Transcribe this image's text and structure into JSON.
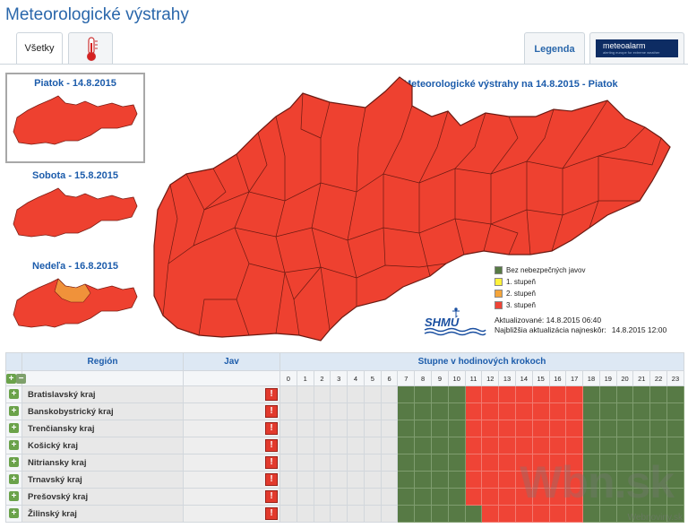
{
  "page": {
    "title": "Meteorologické výstrahy"
  },
  "tabs": {
    "all": "Všetky",
    "legend": "Legenda",
    "meteoalarm_logo": "meteoalarm",
    "meteoalarm_tagline": "alerting europe for extreme weather"
  },
  "days": [
    {
      "label": "Piatok - 14.8.2015",
      "selected": true
    },
    {
      "label": "Sobota - 15.8.2015",
      "selected": false
    },
    {
      "label": "Nedeľa - 16.8.2015",
      "selected": false
    }
  ],
  "map": {
    "title": "Meteorologické výstrahy na 14.8.2015 - Piatok",
    "fill_color": "#ee4130"
  },
  "legend": [
    {
      "label": "Bez nebezpečných javov",
      "color": "#577a45"
    },
    {
      "label": "1. stupeň",
      "color": "#fff23a"
    },
    {
      "label": "2. stupeň",
      "color": "#f5a53a"
    },
    {
      "label": "3. stupeň",
      "color": "#ef4436"
    }
  ],
  "shmu_logo": "SHMÚ",
  "update": {
    "updated_label": "Aktualizované:",
    "updated_value": "14.8.2015 06:40",
    "next_label": "Najbližšia aktualizácia najneskôr:",
    "next_value": "14.8.2015 12:00"
  },
  "table": {
    "col_region": "Región",
    "col_jav": "Jav",
    "col_hours": "Stupne v hodinových krokoch",
    "hours": [
      "0",
      "1",
      "2",
      "3",
      "4",
      "5",
      "6",
      "7",
      "8",
      "9",
      "10",
      "11",
      "12",
      "13",
      "14",
      "15",
      "16",
      "17",
      "18",
      "19",
      "20",
      "21",
      "22",
      "23"
    ],
    "rows": [
      {
        "name": "Bratislavský kraj",
        "levels": [
          "none",
          "none",
          "none",
          "none",
          "none",
          "none",
          "none",
          "green",
          "green",
          "green",
          "green",
          "red",
          "red",
          "red",
          "red",
          "red",
          "red",
          "red",
          "green",
          "green",
          "green",
          "green",
          "green",
          "green"
        ]
      },
      {
        "name": "Banskobystrický kraj",
        "levels": [
          "none",
          "none",
          "none",
          "none",
          "none",
          "none",
          "none",
          "green",
          "green",
          "green",
          "green",
          "red",
          "red",
          "red",
          "red",
          "red",
          "red",
          "red",
          "green",
          "green",
          "green",
          "green",
          "green",
          "green"
        ]
      },
      {
        "name": "Trenčiansky kraj",
        "levels": [
          "none",
          "none",
          "none",
          "none",
          "none",
          "none",
          "none",
          "green",
          "green",
          "green",
          "green",
          "red",
          "red",
          "red",
          "red",
          "red",
          "red",
          "red",
          "green",
          "green",
          "green",
          "green",
          "green",
          "green"
        ]
      },
      {
        "name": "Košický kraj",
        "levels": [
          "none",
          "none",
          "none",
          "none",
          "none",
          "none",
          "none",
          "green",
          "green",
          "green",
          "green",
          "red",
          "red",
          "red",
          "red",
          "red",
          "red",
          "red",
          "green",
          "green",
          "green",
          "green",
          "green",
          "green"
        ]
      },
      {
        "name": "Nitriansky kraj",
        "levels": [
          "none",
          "none",
          "none",
          "none",
          "none",
          "none",
          "none",
          "green",
          "green",
          "green",
          "green",
          "red",
          "red",
          "red",
          "red",
          "red",
          "red",
          "red",
          "green",
          "green",
          "green",
          "green",
          "green",
          "green"
        ]
      },
      {
        "name": "Trnavský kraj",
        "levels": [
          "none",
          "none",
          "none",
          "none",
          "none",
          "none",
          "none",
          "green",
          "green",
          "green",
          "green",
          "red",
          "red",
          "red",
          "red",
          "red",
          "red",
          "red",
          "green",
          "green",
          "green",
          "green",
          "green",
          "green"
        ]
      },
      {
        "name": "Prešovský kraj",
        "levels": [
          "none",
          "none",
          "none",
          "none",
          "none",
          "none",
          "none",
          "green",
          "green",
          "green",
          "green",
          "red",
          "red",
          "red",
          "red",
          "red",
          "red",
          "red",
          "green",
          "green",
          "green",
          "green",
          "green",
          "green"
        ]
      },
      {
        "name": "Žilinský kraj",
        "levels": [
          "none",
          "none",
          "none",
          "none",
          "none",
          "none",
          "none",
          "green",
          "green",
          "green",
          "green",
          "green",
          "red",
          "red",
          "red",
          "red",
          "red",
          "red",
          "green",
          "green",
          "green",
          "green",
          "green",
          "green"
        ]
      }
    ]
  },
  "watermark": {
    "main": "Wbn.sk",
    "sub": "Webnoviny.sk"
  }
}
